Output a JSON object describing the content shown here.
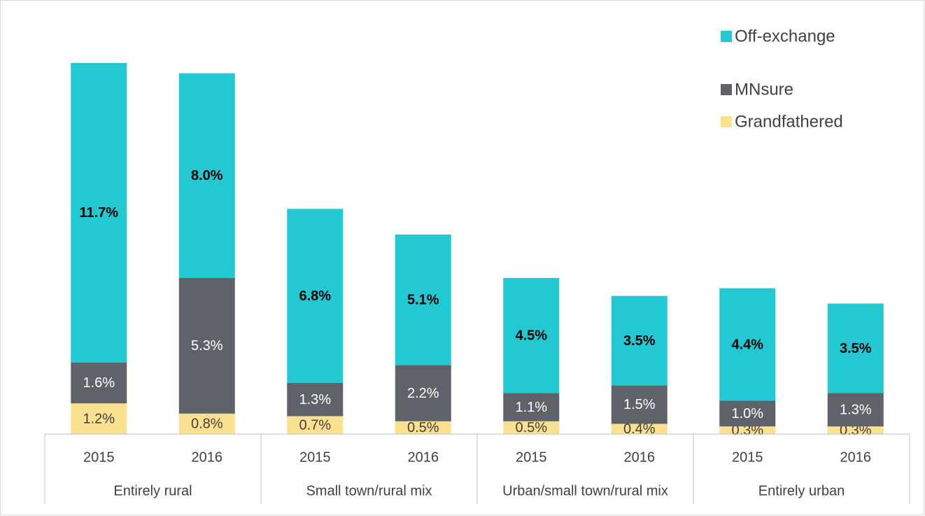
{
  "chart_data": {
    "type": "stacked-bar",
    "categories": [
      "2015",
      "2016",
      "2015",
      "2016",
      "2015",
      "2016",
      "2015",
      "2016"
    ],
    "groups": [
      "Entirely rural",
      "Small town/rural mix",
      "Urban/small town/rural mix",
      "Entirely urban"
    ],
    "series": [
      {
        "name": "Off-exchange",
        "color": "#22c9d3",
        "values": [
          11.7,
          8.0,
          6.8,
          5.1,
          4.5,
          3.5,
          4.4,
          3.5
        ],
        "value_labels": [
          "11.7%",
          "8.0%",
          "6.8%",
          "5.1%",
          "4.5%",
          "3.5%",
          "4.4%",
          "3.5%"
        ]
      },
      {
        "name": "MNsure",
        "color": "#5f6369",
        "values": [
          1.6,
          5.3,
          1.3,
          2.2,
          1.1,
          1.5,
          1.0,
          1.3
        ],
        "value_labels": [
          "1.6%",
          "5.3%",
          "1.3%",
          "2.2%",
          "1.1%",
          "1.5%",
          "1.0%",
          "1.3%"
        ]
      },
      {
        "name": "Grandfathered",
        "color": "#fbe08f",
        "values": [
          1.2,
          0.8,
          0.7,
          0.5,
          0.5,
          0.4,
          0.3,
          0.3
        ],
        "value_labels": [
          "1.2%",
          "0.8%",
          "0.7%",
          "0.5%",
          "0.5%",
          "0.4%",
          "0.3%",
          "0.3%"
        ]
      }
    ],
    "legend": "top-right"
  }
}
